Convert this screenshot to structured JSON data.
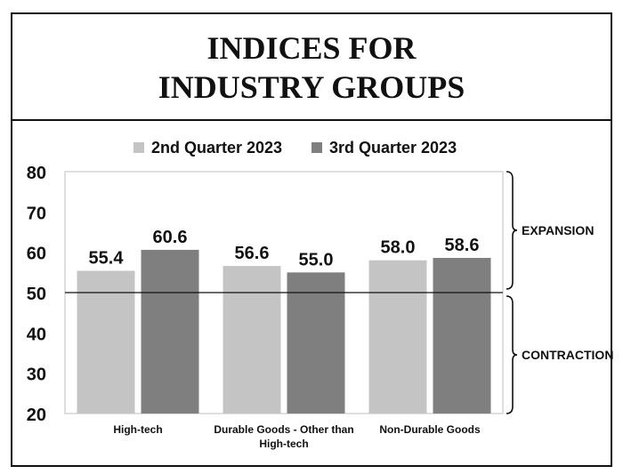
{
  "chart_data": {
    "type": "bar",
    "title": [
      "INDICES FOR",
      "INDUSTRY GROUPS"
    ],
    "categories": [
      [
        "High-tech"
      ],
      [
        "Durable Goods - Other than",
        "High-tech"
      ],
      [
        "Non-Durable Goods"
      ]
    ],
    "series": [
      {
        "name": "2nd Quarter 2023",
        "color": "#c4c4c4",
        "values": [
          55.4,
          56.6,
          58.0
        ],
        "labels": [
          "55.4",
          "56.6",
          "58.0"
        ]
      },
      {
        "name": "3rd Quarter 2023",
        "color": "#7f7f7f",
        "values": [
          60.6,
          55.0,
          58.6
        ],
        "labels": [
          "60.6",
          "55.0",
          "58.6"
        ]
      }
    ],
    "ylim": [
      20,
      80
    ],
    "yticks": [
      "20",
      "30",
      "40",
      "50",
      "60",
      "70",
      "80"
    ],
    "reference_line": 50,
    "bands": [
      {
        "label": "EXPANSION",
        "range": [
          50,
          80
        ]
      },
      {
        "label": "CONTRACTION",
        "range": [
          20,
          50
        ]
      }
    ],
    "legend_position": "top",
    "grid": false
  }
}
